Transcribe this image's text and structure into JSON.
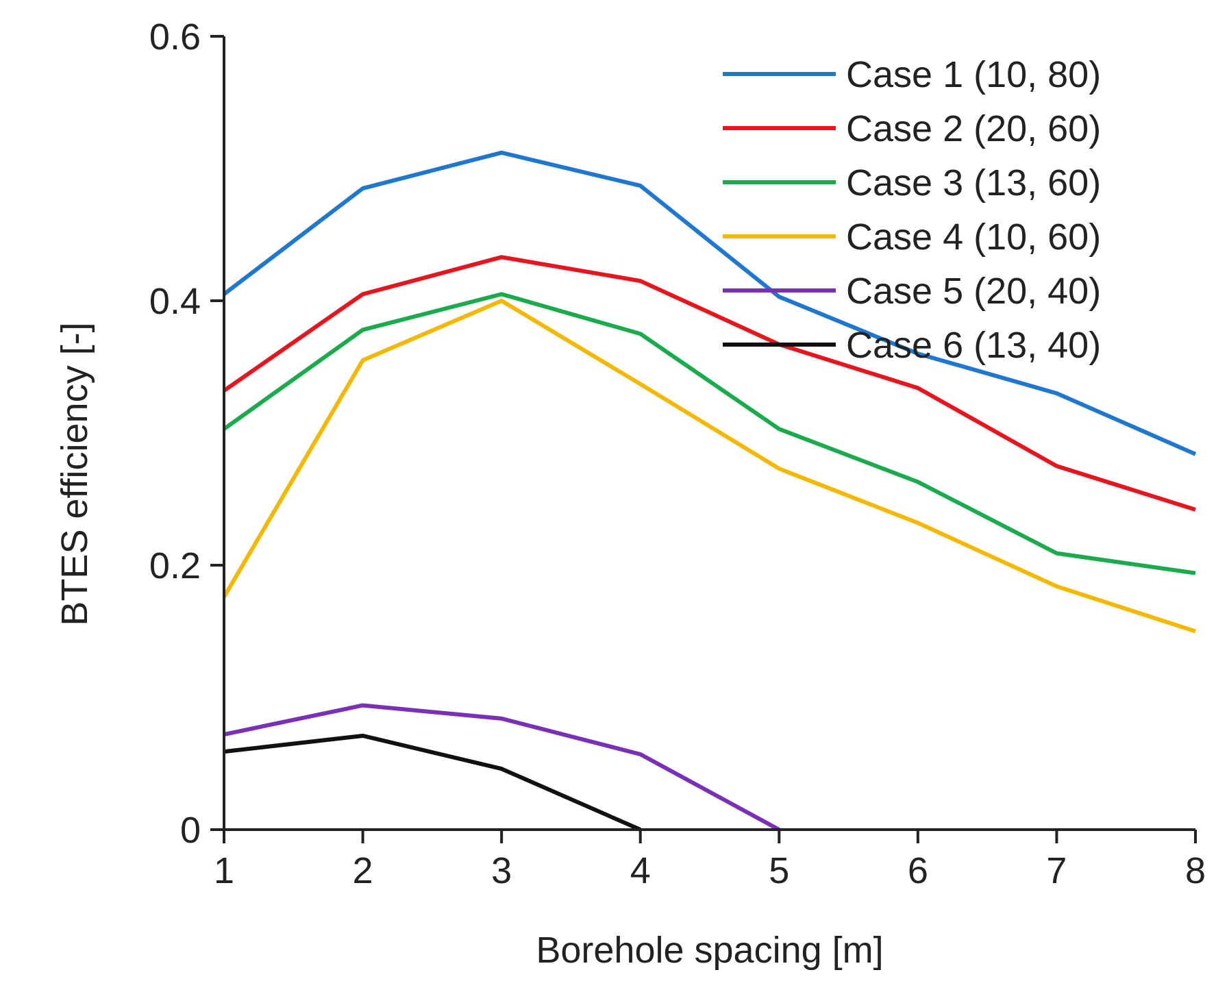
{
  "chart_data": {
    "type": "line",
    "title": "",
    "xlabel": "Borehole spacing [m]",
    "ylabel": "BTES efficiency [-]",
    "x": [
      1,
      2,
      3,
      4,
      5,
      6,
      7,
      8
    ],
    "xlim": [
      1,
      8
    ],
    "ylim": [
      0,
      0.6
    ],
    "xticks": [
      "1",
      "2",
      "3",
      "4",
      "5",
      "6",
      "7",
      "8"
    ],
    "yticks": [
      {
        "value": 0,
        "label": "0"
      },
      {
        "value": 0.2,
        "label": "0.2"
      },
      {
        "value": 0.4,
        "label": "0.4"
      },
      {
        "value": 0.6,
        "label": "0.6"
      }
    ],
    "grid": false,
    "legend_position": "top-right",
    "series": [
      {
        "name": "Case 1 (10, 80)",
        "color": "#1F77D0",
        "x": [
          1,
          2,
          3,
          4,
          5,
          6,
          7,
          8
        ],
        "values": [
          0.405,
          0.485,
          0.512,
          0.487,
          0.403,
          0.36,
          0.33,
          0.284
        ]
      },
      {
        "name": "Case 2 (20, 60)",
        "color": "#E8141E",
        "x": [
          1,
          2,
          3,
          4,
          5,
          6,
          7,
          8
        ],
        "values": [
          0.332,
          0.405,
          0.433,
          0.415,
          0.367,
          0.334,
          0.275,
          0.242
        ]
      },
      {
        "name": "Case 3 (13, 60)",
        "color": "#1BAA4D",
        "x": [
          1,
          2,
          3,
          4,
          5,
          6,
          7,
          8
        ],
        "values": [
          0.303,
          0.378,
          0.405,
          0.375,
          0.303,
          0.263,
          0.209,
          0.194
        ]
      },
      {
        "name": "Case 4 (10, 60)",
        "color": "#F5B800",
        "x": [
          1,
          2,
          3,
          4,
          5,
          6,
          7,
          8
        ],
        "values": [
          0.176,
          0.355,
          0.4,
          0.337,
          0.273,
          0.232,
          0.184,
          0.15
        ]
      },
      {
        "name": "Case 5 (20, 40)",
        "color": "#7A2FB8",
        "x": [
          1,
          2,
          3,
          4,
          5
        ],
        "values": [
          0.072,
          0.094,
          0.084,
          0.057,
          0.0
        ]
      },
      {
        "name": "Case 6 (13, 40)",
        "color": "#111111",
        "x": [
          1,
          2,
          3,
          4
        ],
        "values": [
          0.059,
          0.071,
          0.046,
          0.0
        ]
      }
    ]
  }
}
